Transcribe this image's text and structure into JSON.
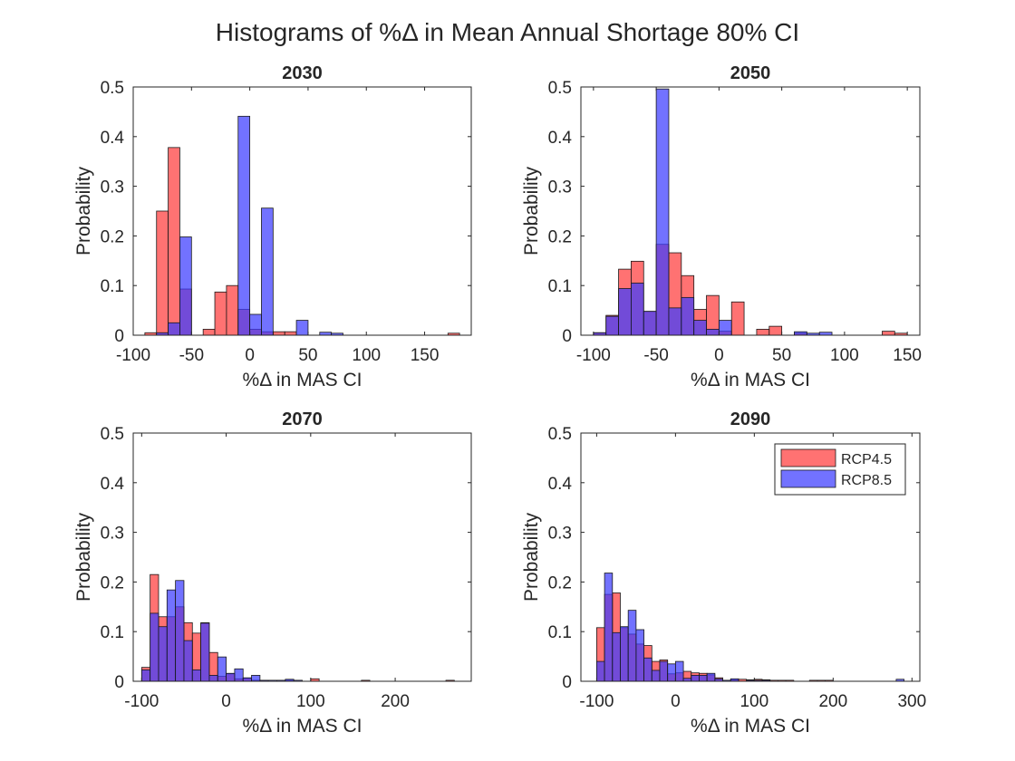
{
  "figure": {
    "title": "Histograms of %Δ in Mean Annual Shortage 80% CI"
  },
  "legend": {
    "placement": "top-right of 2090 panel",
    "items": [
      {
        "label": "RCP4.5",
        "color": "#ff3b3b"
      },
      {
        "label": "RCP8.5",
        "color": "#3b3bff"
      }
    ]
  },
  "colors": {
    "rcp45_fill": "#ff3b3b",
    "rcp85_fill": "#3b3bff",
    "overlap_fill": "#6a1fc2",
    "bar_edge": "#1a1a1a",
    "axis": "#262626"
  },
  "chart_data": [
    {
      "type": "bar",
      "title": "2030",
      "xlabel": "%Δ in MAS CI",
      "ylabel": "Probability",
      "xlim": [
        -100,
        190
      ],
      "ylim": [
        0,
        0.5
      ],
      "xticks": [
        -100,
        -50,
        0,
        50,
        100,
        150
      ],
      "yticks": [
        0,
        0.1,
        0.2,
        0.3,
        0.4,
        0.5
      ],
      "series": [
        {
          "name": "RCP4.5",
          "bin_edges": [
            -90,
            -80,
            -70,
            -60,
            -50,
            -40,
            -30,
            -20,
            -10,
            0,
            10,
            20,
            30,
            40,
            50,
            60,
            70,
            80,
            90,
            160,
            170,
            180
          ],
          "values": [
            0.005,
            0.25,
            0.378,
            0.093,
            0,
            0.012,
            0.087,
            0.1,
            0.052,
            0.012,
            0.007,
            0.007,
            0.007,
            0,
            0,
            0,
            0,
            0,
            0,
            0,
            0.004
          ]
        },
        {
          "name": "RCP8.5",
          "bin_edges": [
            -90,
            -80,
            -70,
            -60,
            -50,
            -40,
            -30,
            -20,
            -10,
            0,
            10,
            20,
            30,
            40,
            50,
            60,
            70,
            80,
            90
          ],
          "values": [
            0,
            0.005,
            0.025,
            0.198,
            0,
            0,
            0,
            0,
            0.441,
            0.042,
            0.256,
            0,
            0,
            0.03,
            0,
            0.006,
            0.004,
            0
          ]
        }
      ]
    },
    {
      "type": "bar",
      "title": "2050",
      "xlabel": "%Δ in MAS CI",
      "ylabel": "Probability",
      "xlim": [
        -110,
        160
      ],
      "ylim": [
        0,
        0.5
      ],
      "xticks": [
        -100,
        -50,
        0,
        50,
        100,
        150
      ],
      "yticks": [
        0,
        0.1,
        0.2,
        0.3,
        0.4,
        0.5
      ],
      "series": [
        {
          "name": "RCP4.5",
          "bin_edges": [
            -100,
            -90,
            -80,
            -70,
            -60,
            -50,
            -40,
            -30,
            -20,
            -10,
            0,
            10,
            20,
            30,
            40,
            50,
            60,
            70,
            80,
            90,
            100,
            110,
            120,
            130,
            140,
            150
          ],
          "values": [
            0.005,
            0.04,
            0.133,
            0.149,
            0.048,
            0.183,
            0.166,
            0.12,
            0.052,
            0.08,
            0.008,
            0.067,
            0,
            0.012,
            0.018,
            0,
            0.004,
            0,
            0,
            0,
            0,
            0,
            0,
            0.008,
            0.004
          ]
        },
        {
          "name": "RCP8.5",
          "bin_edges": [
            -100,
            -90,
            -80,
            -70,
            -60,
            -50,
            -40,
            -30,
            -20,
            -10,
            0,
            10,
            20,
            30,
            40,
            50,
            60,
            70,
            80,
            90
          ],
          "values": [
            0.005,
            0.038,
            0.094,
            0.105,
            0.048,
            0.496,
            0.055,
            0.076,
            0.03,
            0.012,
            0.03,
            0,
            0,
            0,
            0,
            0,
            0.007,
            0.004,
            0.006
          ]
        }
      ]
    },
    {
      "type": "bar",
      "title": "2070",
      "xlabel": "%Δ in MAS CI",
      "ylabel": "Probability",
      "xlim": [
        -110,
        290
      ],
      "ylim": [
        0,
        0.5
      ],
      "xticks": [
        -100,
        0,
        100,
        200
      ],
      "yticks": [
        0,
        0.1,
        0.2,
        0.3,
        0.4,
        0.5
      ],
      "series": [
        {
          "name": "RCP4.5",
          "bin_edges": [
            -100,
            -90,
            -80,
            -70,
            -60,
            -50,
            -40,
            -30,
            -20,
            -10,
            0,
            10,
            20,
            30,
            40,
            50,
            60,
            70,
            80,
            90,
            100,
            110,
            120,
            160,
            170,
            180,
            250,
            260,
            270,
            280
          ],
          "values": [
            0.028,
            0.215,
            0.13,
            0.13,
            0.15,
            0.118,
            0.097,
            0.118,
            0.058,
            0.01,
            0.015,
            0.005,
            0.006,
            0.002,
            0.002,
            0,
            0,
            0.002,
            0,
            0,
            0.005,
            0,
            0,
            0.002,
            0,
            0,
            0,
            0.002,
            0
          ]
        },
        {
          "name": "RCP8.5",
          "bin_edges": [
            -100,
            -90,
            -80,
            -70,
            -60,
            -50,
            -40,
            -30,
            -20,
            -10,
            0,
            10,
            20,
            30,
            40,
            50,
            60,
            70,
            80,
            90
          ],
          "values": [
            0.023,
            0.137,
            0.11,
            0.184,
            0.203,
            0.082,
            0.023,
            0.117,
            0.012,
            0.049,
            0.016,
            0.025,
            0.007,
            0.012,
            0.002,
            0.002,
            0.002,
            0.004,
            0.002
          ]
        }
      ]
    },
    {
      "type": "bar",
      "title": "2090",
      "xlabel": "%Δ in MAS CI",
      "ylabel": "Probability",
      "xlim": [
        -120,
        310
      ],
      "ylim": [
        0,
        0.5
      ],
      "xticks": [
        -100,
        0,
        100,
        200,
        300
      ],
      "yticks": [
        0,
        0.1,
        0.2,
        0.3,
        0.4,
        0.5
      ],
      "legend": [
        "RCP4.5",
        "RCP8.5"
      ],
      "series": [
        {
          "name": "RCP4.5",
          "bin_edges": [
            -100,
            -90,
            -80,
            -70,
            -60,
            -50,
            -40,
            -30,
            -20,
            -10,
            0,
            10,
            20,
            30,
            40,
            50,
            60,
            70,
            80,
            90,
            100,
            110,
            120,
            130,
            140,
            150,
            160,
            170,
            180,
            190,
            200
          ],
          "values": [
            0.108,
            0.175,
            0.178,
            0.108,
            0.095,
            0.075,
            0.072,
            0.04,
            0.043,
            0.015,
            0.017,
            0.02,
            0.017,
            0.016,
            0.013,
            0.007,
            0,
            0.003,
            0.004,
            0.003,
            0.004,
            0.003,
            0.002,
            0.002,
            0.002,
            0,
            0,
            0.002,
            0.002,
            0.002
          ]
        },
        {
          "name": "RCP8.5",
          "bin_edges": [
            -100,
            -90,
            -80,
            -70,
            -60,
            -50,
            -40,
            -30,
            -20,
            -10,
            0,
            10,
            20,
            30,
            40,
            50,
            60,
            70,
            80,
            90,
            100,
            110,
            120,
            280,
            290
          ],
          "values": [
            0.04,
            0.218,
            0.098,
            0.11,
            0.143,
            0.104,
            0.047,
            0.022,
            0.04,
            0.035,
            0.04,
            0.006,
            0.012,
            0.012,
            0.016,
            0.005,
            0.002,
            0.005,
            0,
            0.002,
            0.002,
            0.002,
            0,
            0.004
          ]
        }
      ]
    }
  ]
}
